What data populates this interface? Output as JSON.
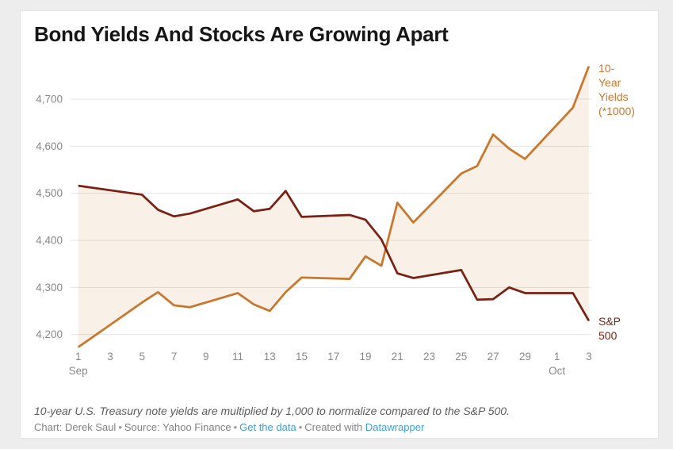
{
  "colors": {
    "page_background": "#ededed",
    "card_background": "#ffffff",
    "title_color": "#161616",
    "axis_text": "#888888",
    "gridline": "#e4e4e4",
    "yields_orange": "#c9772c",
    "sp500_dark_red": "#7a2115",
    "area_fill": "rgba(201,119,44,0.11)",
    "link_blue": "#3da0d8"
  },
  "header": {
    "title": "Bond Yields And Stocks Are Growing Apart"
  },
  "chart_data": {
    "type": "line",
    "title": "Bond Yields And Stocks Are Growing Apart",
    "xlabel": "",
    "ylabel": "",
    "grid": "horizontal",
    "legend_position": "direct-labels-right",
    "fill_between_series": true,
    "ylim": [
      4165,
      4785
    ],
    "dates": [
      "Sep 1",
      "Sep 5",
      "Sep 6",
      "Sep 7",
      "Sep 8",
      "Sep 11",
      "Sep 12",
      "Sep 13",
      "Sep 14",
      "Sep 15",
      "Sep 18",
      "Sep 19",
      "Sep 20",
      "Sep 21",
      "Sep 22",
      "Sep 25",
      "Sep 26",
      "Sep 27",
      "Sep 28",
      "Sep 29",
      "Oct 2",
      "Oct 3"
    ],
    "day_offsets": [
      0,
      4,
      5,
      6,
      7,
      10,
      11,
      12,
      13,
      14,
      17,
      18,
      19,
      20,
      21,
      24,
      25,
      26,
      27,
      28,
      31,
      32
    ],
    "series": [
      {
        "name": "10-Year Yields (*1000)",
        "label_lines": "10-\nYear\nYields\n(*1000)",
        "color": "#c9772c",
        "values": [
          4173,
          4268,
          4290,
          4262,
          4258,
          4288,
          4264,
          4250,
          4290,
          4321,
          4318,
          4366,
          4346,
          4480,
          4438,
          4542,
          4558,
          4625,
          4595,
          4573,
          4682,
          4770
        ]
      },
      {
        "name": "S&P 500",
        "label_lines": "S&P\n500",
        "color": "#7a2115",
        "values": [
          4516,
          4497,
          4465,
          4451,
          4457,
          4487,
          4462,
          4467,
          4505,
          4450,
          4454,
          4444,
          4402,
          4330,
          4320,
          4337,
          4274,
          4275,
          4300,
          4288,
          4288,
          4229
        ]
      }
    ],
    "y_ticks": [
      {
        "value": 4200,
        "label": "4,200"
      },
      {
        "value": 4300,
        "label": "4,300"
      },
      {
        "value": 4400,
        "label": "4,400"
      },
      {
        "value": 4500,
        "label": "4,500"
      },
      {
        "value": 4600,
        "label": "4,600"
      },
      {
        "value": 4700,
        "label": "4,700"
      }
    ],
    "x_ticks": [
      {
        "day": 0,
        "label": "1",
        "month": "Sep"
      },
      {
        "day": 2,
        "label": "3"
      },
      {
        "day": 4,
        "label": "5"
      },
      {
        "day": 6,
        "label": "7"
      },
      {
        "day": 8,
        "label": "9"
      },
      {
        "day": 10,
        "label": "11"
      },
      {
        "day": 12,
        "label": "13"
      },
      {
        "day": 14,
        "label": "15"
      },
      {
        "day": 16,
        "label": "17"
      },
      {
        "day": 18,
        "label": "19"
      },
      {
        "day": 20,
        "label": "21"
      },
      {
        "day": 22,
        "label": "23"
      },
      {
        "day": 24,
        "label": "25"
      },
      {
        "day": 26,
        "label": "27"
      },
      {
        "day": 28,
        "label": "29"
      },
      {
        "day": 30,
        "label": "1",
        "month": "Oct"
      },
      {
        "day": 32,
        "label": "3"
      }
    ]
  },
  "footer": {
    "footnote": "10-year U.S. Treasury note yields are multiplied by 1,000 to normalize compared to the S&P 500.",
    "credit": "Chart: Derek Saul",
    "separator": "•",
    "source": "Source: Yahoo Finance",
    "get_data_label": "Get the data",
    "created_with": "Created with",
    "datawrapper_label": "Datawrapper"
  }
}
